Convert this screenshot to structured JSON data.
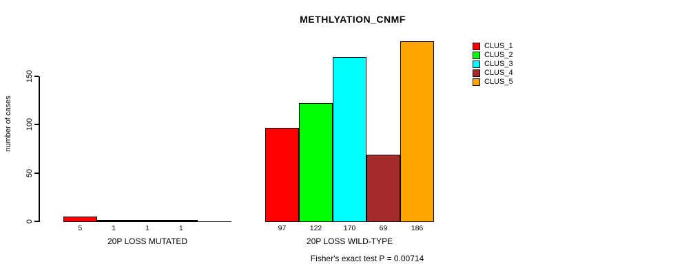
{
  "chart_data": {
    "type": "bar",
    "title": "METHLYATION_CNMF",
    "ylabel": "number of cases",
    "xlabel": "",
    "yticks": [
      0,
      50,
      100,
      150
    ],
    "ylim": [
      0,
      190
    ],
    "grid": false,
    "legend": {
      "position": "right",
      "entries": [
        {
          "label": "CLUS_1",
          "color": "#FF0000"
        },
        {
          "label": "CLUS_2",
          "color": "#00FF00"
        },
        {
          "label": "CLUS_3",
          "color": "#00FFFF"
        },
        {
          "label": "CLUS_4",
          "color": "#A52A2A"
        },
        {
          "label": "CLUS_5",
          "color": "#FFA500"
        }
      ]
    },
    "groups": [
      {
        "label": "20P LOSS MUTATED",
        "values": [
          5,
          1,
          1,
          1,
          0
        ],
        "bar_labels": [
          "5",
          "1",
          "1",
          "1",
          ""
        ]
      },
      {
        "label": "20P LOSS WILD-TYPE",
        "values": [
          97,
          122,
          170,
          69,
          186
        ],
        "bar_labels": [
          "97",
          "122",
          "170",
          "69",
          "186"
        ]
      }
    ],
    "footnote": "Fisher's exact test P = 0.00714",
    "axis_color": "#000000",
    "bar_border_color": "#000000"
  }
}
